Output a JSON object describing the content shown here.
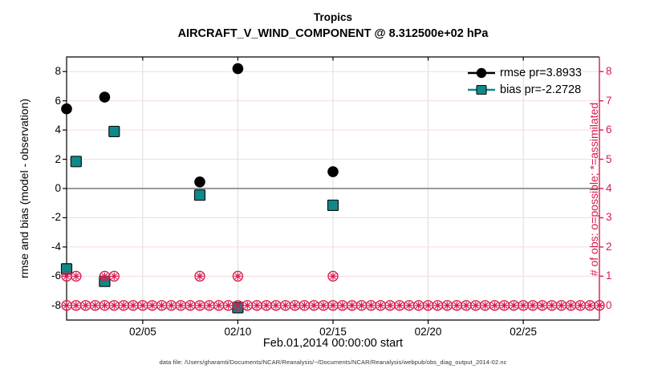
{
  "figure": {
    "title_line1": "Tropics",
    "title_line2": "AIRCRAFT_V_WIND_COMPONENT @ 8.312500e+02 hPa",
    "footer": "data file: /Users/gharamti/Documents/NCAR/Reanalysis/~/Documents/NCAR/Reanalysis/webpub/obs_diag_output_2014-02.nc"
  },
  "chart_data": {
    "type": "scatter",
    "title": "Tropics",
    "subtitle": "AIRCRAFT_V_WIND_COMPONENT @ 8.312500e+02 hPa",
    "xlabel": "Feb.01,2014 00:00:00 start",
    "ylabel_left": "rmse and bias (model - observation)",
    "ylabel_right": "# of obs: o=possible; *=assimilated",
    "x_unit": "day of February 2014",
    "xlim": [
      1,
      29
    ],
    "ylim_left": [
      -9,
      9
    ],
    "ylim_right": [
      -0.5,
      8.5
    ],
    "x_ticks": {
      "days": [
        5,
        10,
        15,
        20,
        25
      ],
      "labels": [
        "02/05",
        "02/10",
        "02/15",
        "02/20",
        "02/25"
      ]
    },
    "y_ticks_left": [
      8,
      6,
      4,
      2,
      0,
      -2,
      -4,
      -6,
      -8
    ],
    "y_ticks_right": [
      8,
      7,
      6,
      5,
      4,
      3,
      2,
      1,
      0
    ],
    "grid": true,
    "zero_line": true,
    "legend_position": "top-right",
    "series": [
      {
        "name": "rmse pr=3.8933",
        "marker": "circle",
        "axis": "left",
        "points": [
          [
            1,
            5.45
          ],
          [
            1.5,
            1.85
          ],
          [
            3,
            6.25
          ],
          [
            3.5,
            3.9
          ],
          [
            8,
            0.45
          ],
          [
            10,
            8.2
          ],
          [
            15,
            1.15
          ]
        ]
      },
      {
        "name": "bias pr=-2.2728",
        "marker": "square",
        "axis": "left",
        "points": [
          [
            1,
            -5.5
          ],
          [
            1.5,
            1.85
          ],
          [
            3,
            -6.35
          ],
          [
            3.5,
            3.9
          ],
          [
            8,
            -0.45
          ],
          [
            10,
            -8.15
          ],
          [
            15,
            -1.15
          ]
        ]
      },
      {
        "name": "# of obs possible / assimilated",
        "marker": "circle-asterisk",
        "axis": "right",
        "points": [
          [
            1,
            1
          ],
          [
            1.5,
            1
          ],
          [
            3,
            1
          ],
          [
            3.5,
            1
          ],
          [
            8,
            1
          ],
          [
            10,
            1
          ],
          [
            15,
            1
          ]
        ],
        "zero_row": {
          "start": 1,
          "end": 29,
          "step": 0.5,
          "value": 0
        }
      }
    ],
    "colors": {
      "rmse": "#000000",
      "bias": "#0d8a8a",
      "bias_edge": "#111111",
      "obs": "#d91a4d",
      "grid_horizontal": "#f6d9e0",
      "grid_vertical": "#dcdcdc",
      "zero_line": "#999999",
      "axis_left": "#000000",
      "axis_right": "#d91a4d"
    }
  }
}
